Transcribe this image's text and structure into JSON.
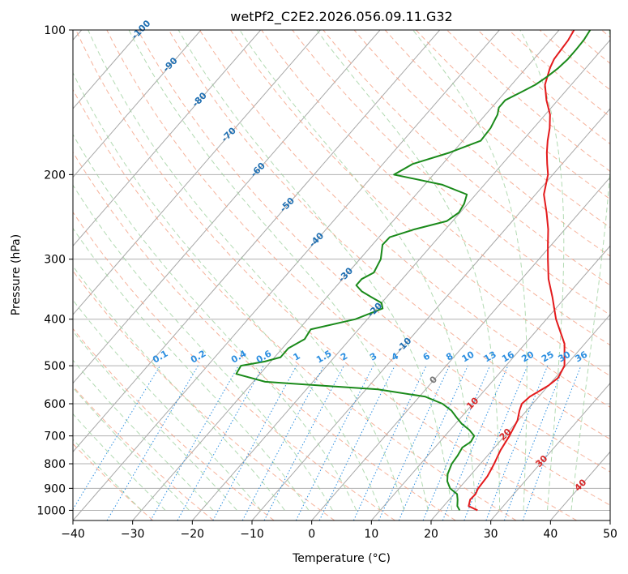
{
  "chart_data": {
    "type": "line",
    "title": "wetPf2_C2E2.2026.056.09.11.G32",
    "xlabel": "Temperature (°C)",
    "ylabel": "Pressure (hPa)",
    "xlim": [
      -40,
      50
    ],
    "ylim": [
      1050,
      100
    ],
    "y_scale": "log",
    "grid": true,
    "x_ticks": [
      "−40",
      "−30",
      "−20",
      "−10",
      "0",
      "10",
      "20",
      "30",
      "40",
      "50"
    ],
    "y_ticks": [
      "100",
      "200",
      "300",
      "400",
      "500",
      "600",
      "700",
      "800",
      "900",
      "1000"
    ],
    "series": [
      {
        "color": "#e31a1c",
        "points": [
          [
            1000,
            26.3
          ],
          [
            980,
            24.2
          ],
          [
            950,
            23.5
          ],
          [
            925,
            23.6
          ],
          [
            900,
            23.2
          ],
          [
            850,
            23.0
          ],
          [
            820,
            22.6
          ],
          [
            800,
            22.3
          ],
          [
            750,
            21.4
          ],
          [
            700,
            20.8
          ],
          [
            650,
            19.9
          ],
          [
            620,
            18.8
          ],
          [
            600,
            18.2
          ],
          [
            580,
            18.5
          ],
          [
            550,
            20.0
          ],
          [
            530,
            20.5
          ],
          [
            500,
            19.8
          ],
          [
            450,
            16.6
          ],
          [
            400,
            11.6
          ],
          [
            360,
            7.8
          ],
          [
            330,
            4.5
          ],
          [
            300,
            1.5
          ],
          [
            280,
            -0.6
          ],
          [
            260,
            -2.8
          ],
          [
            240,
            -5.5
          ],
          [
            220,
            -8.6
          ],
          [
            200,
            -10.8
          ],
          [
            190,
            -12.5
          ],
          [
            180,
            -14.2
          ],
          [
            170,
            -15.8
          ],
          [
            160,
            -17.3
          ],
          [
            150,
            -19.2
          ],
          [
            140,
            -21.9
          ],
          [
            130,
            -24.4
          ],
          [
            120,
            -26.0
          ],
          [
            115,
            -26.6
          ],
          [
            110,
            -26.8
          ],
          [
            105,
            -27.0
          ],
          [
            100,
            -27.5
          ]
        ]
      },
      {
        "color": "#1a8a1a",
        "points": [
          [
            1000,
            23.3
          ],
          [
            980,
            22.3
          ],
          [
            950,
            21.4
          ],
          [
            925,
            20.5
          ],
          [
            900,
            18.5
          ],
          [
            870,
            17.0
          ],
          [
            840,
            16.0
          ],
          [
            800,
            15.2
          ],
          [
            770,
            15.0
          ],
          [
            740,
            14.6
          ],
          [
            720,
            15.2
          ],
          [
            700,
            14.9
          ],
          [
            680,
            13.2
          ],
          [
            660,
            11.0
          ],
          [
            640,
            9.2
          ],
          [
            620,
            7.4
          ],
          [
            600,
            4.9
          ],
          [
            580,
            1.0
          ],
          [
            560,
            -8.0
          ],
          [
            550,
            -18.0
          ],
          [
            540,
            -28.0
          ],
          [
            520,
            -34.0
          ],
          [
            500,
            -34.4
          ],
          [
            490,
            -31.0
          ],
          [
            480,
            -29.0
          ],
          [
            460,
            -29.0
          ],
          [
            440,
            -27.6
          ],
          [
            420,
            -28.0
          ],
          [
            400,
            -22.0
          ],
          [
            380,
            -19.0
          ],
          [
            370,
            -20.0
          ],
          [
            360,
            -22.5
          ],
          [
            350,
            -25.0
          ],
          [
            340,
            -26.8
          ],
          [
            330,
            -26.8
          ],
          [
            320,
            -25.7
          ],
          [
            300,
            -26.5
          ],
          [
            280,
            -28.3
          ],
          [
            270,
            -28.2
          ],
          [
            260,
            -25.2
          ],
          [
            250,
            -21.0
          ],
          [
            240,
            -20.2
          ],
          [
            230,
            -20.6
          ],
          [
            220,
            -21.5
          ],
          [
            210,
            -27.0
          ],
          [
            200,
            -36.6
          ],
          [
            190,
            -35.0
          ],
          [
            180,
            -30.5
          ],
          [
            170,
            -27.0
          ],
          [
            160,
            -27.2
          ],
          [
            150,
            -28.0
          ],
          [
            145,
            -28.8
          ],
          [
            140,
            -28.8
          ],
          [
            135,
            -27.4
          ],
          [
            130,
            -26.0
          ],
          [
            125,
            -25.2
          ],
          [
            120,
            -24.6
          ],
          [
            115,
            -24.3
          ],
          [
            110,
            -24.3
          ],
          [
            105,
            -24.4
          ],
          [
            100,
            -24.8
          ]
        ]
      }
    ],
    "isotherm_labels": [
      "-100",
      "-90",
      "-80",
      "-70",
      "-60",
      "-50",
      "-40",
      "-30",
      "-20",
      "-10",
      "0"
    ],
    "dry_adiabat_labels": [
      "10",
      "20",
      "30",
      "40"
    ],
    "mixing_ratio_labels": [
      "0.1",
      "0.2",
      "0.4",
      "0.6",
      "1",
      "1.5",
      "2",
      "3",
      "4",
      "6",
      "8",
      "10",
      "13",
      "16",
      "20",
      "25",
      "30",
      "36"
    ]
  }
}
